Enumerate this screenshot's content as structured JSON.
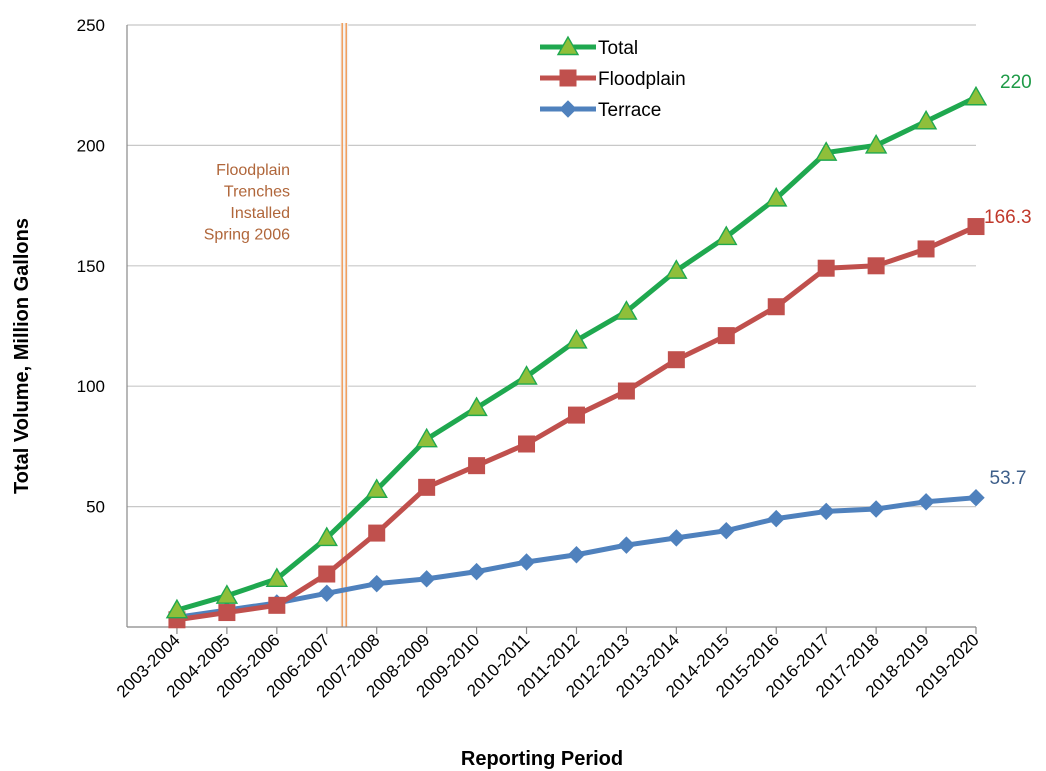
{
  "chart_data": {
    "type": "line",
    "xlabel": "Reporting Period",
    "ylabel": "Total Volume, Million Gallons",
    "ylim": [
      0,
      250
    ],
    "yticks": [
      50,
      100,
      150,
      200,
      250
    ],
    "grid": "horizontal",
    "legend_position": "top-center",
    "categories": [
      "2003-2004",
      "2004-2005",
      "2005-2006",
      "2006-2007",
      "2007-2008",
      "2008-2009",
      "2009-2010",
      "2010-2011",
      "2011-2012",
      "2012-2013",
      "2013-2014",
      "2014-2015",
      "2015-2016",
      "2016-2017",
      "2017-2018",
      "2018-2019",
      "2019-2020"
    ],
    "series": [
      {
        "name": "Total",
        "color": "#1fa84f",
        "marker": "triangle",
        "marker_fill": "#8fbf3a",
        "end_label": "220",
        "values": [
          7,
          13,
          20,
          37,
          57,
          78,
          91,
          104,
          119,
          131,
          148,
          162,
          178,
          197,
          200,
          210,
          220
        ]
      },
      {
        "name": "Floodplain",
        "color": "#c0504d",
        "marker": "square",
        "marker_fill": "#c0504d",
        "end_label": "166.3",
        "values": [
          3,
          6,
          9,
          22,
          39,
          58,
          67,
          76,
          88,
          98,
          111,
          121,
          133,
          149,
          150,
          157,
          166.3
        ]
      },
      {
        "name": "Terrace",
        "color": "#4f81bd",
        "marker": "diamond",
        "marker_fill": "#4f81bd",
        "end_label": "53.7",
        "values": [
          4,
          7,
          10,
          14,
          18,
          20,
          23,
          27,
          30,
          34,
          37,
          40,
          45,
          48,
          49,
          52,
          53.7
        ]
      }
    ],
    "end_label_colors": {
      "Total": "#1e9a47",
      "Floodplain": "#c0392b",
      "Terrace": "#3e5f8a"
    },
    "annotation": {
      "lines": [
        "Floodplain",
        "Trenches",
        "Installed",
        "Spring 2006"
      ],
      "color": "#b0663a",
      "line_color": "#f0a060",
      "x_category_position": 3.35
    }
  }
}
